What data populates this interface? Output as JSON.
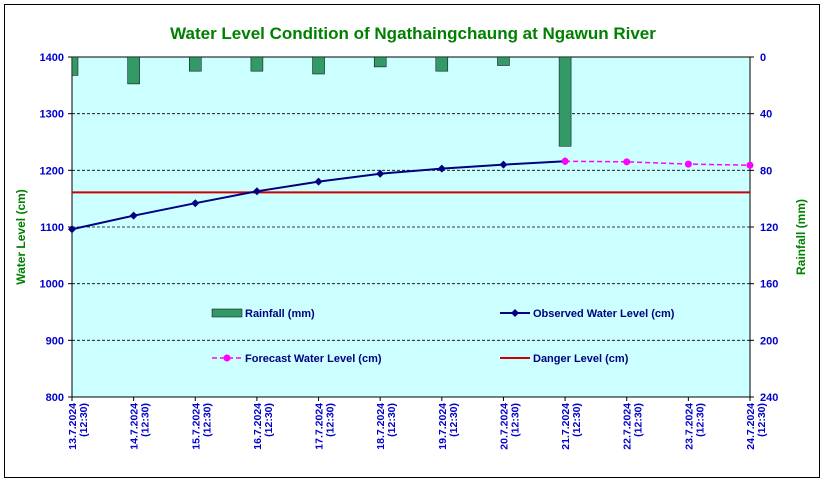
{
  "chart_data": {
    "type": "line",
    "title": "Water Level Condition of  Ngathaingchaung at Ngawun River",
    "ylabel": "Water Level (cm)",
    "y2label": "Rainfall (mm)",
    "ylim": [
      800,
      1400
    ],
    "y2lim": [
      0,
      240
    ],
    "y2_inverted": true,
    "yticks": [
      800,
      900,
      1000,
      1100,
      1200,
      1300,
      1400
    ],
    "y2ticks": [
      0,
      40,
      80,
      120,
      160,
      200,
      240
    ],
    "grid": true,
    "categories": [
      "13.7.2024 (12:30)",
      "14.7.2024 (12:30)",
      "15.7.2024 (12:30)",
      "16.7.2024 (12:30)",
      "17.7.2024 (12:30)",
      "18.7.2024 (12:30)",
      "19.7.2024 (12:30)",
      "20.7.2024 (12:30)",
      "21.7.2024 (12:30)",
      "22.7.2024 (12:30)",
      "23.7.2024 (12:30)",
      "24.7.2024 (12:30)"
    ],
    "series": [
      {
        "name": "Rainfall (mm)",
        "kind": "bar",
        "axis": "y2",
        "color": "#339966",
        "values": [
          13,
          19,
          10,
          10,
          12,
          7,
          10,
          6,
          63,
          null,
          null,
          null
        ]
      },
      {
        "name": "Observed Water Level (cm)",
        "kind": "line",
        "axis": "y",
        "color": "#000080",
        "values": [
          1096,
          1120,
          1142,
          1163,
          1180,
          1194,
          1203,
          1210,
          1216,
          null,
          null,
          null
        ]
      },
      {
        "name": "Forecast Water Level (cm)",
        "kind": "line-dashed",
        "axis": "y",
        "color": "#FF00FF",
        "values": [
          null,
          null,
          null,
          null,
          null,
          null,
          null,
          null,
          1216,
          1215,
          1211,
          1209
        ]
      },
      {
        "name": "Danger Level (cm)",
        "kind": "hline",
        "axis": "y",
        "color": "#CC0000",
        "value": 1161
      }
    ],
    "colors": {
      "plot_bg": "#CCFFFF",
      "title": "#008000",
      "axis_labels": "#008000",
      "tick_labels": "#0000CC",
      "legend_text": "#000080"
    }
  }
}
